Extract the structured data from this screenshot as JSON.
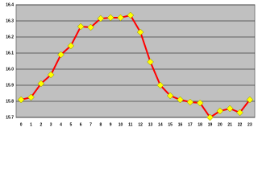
{
  "chart_data": {
    "type": "line",
    "categories": [
      "0",
      "1",
      "2",
      "3",
      "4",
      "5",
      "6",
      "7",
      "8",
      "9",
      "10",
      "11",
      "12",
      "13",
      "14",
      "15",
      "16",
      "17",
      "18",
      "19",
      "20",
      "21",
      "22",
      "23"
    ],
    "values": [
      15.81,
      15.825,
      15.91,
      15.965,
      16.09,
      16.145,
      16.265,
      16.26,
      16.315,
      16.32,
      16.32,
      16.335,
      16.23,
      16.045,
      15.9,
      15.835,
      15.81,
      15.795,
      15.79,
      15.7,
      15.74,
      15.755,
      15.73,
      15.81
    ],
    "color": "#ff0000",
    "marker_color": "#ffff00",
    "ylim": [
      15.7,
      16.4
    ],
    "yticks": [
      15.7,
      15.8,
      15.9,
      {
        "value": 16,
        "label": "16.0"
      },
      16.1,
      16.2,
      16.3,
      16.4
    ],
    "grid": true
  }
}
